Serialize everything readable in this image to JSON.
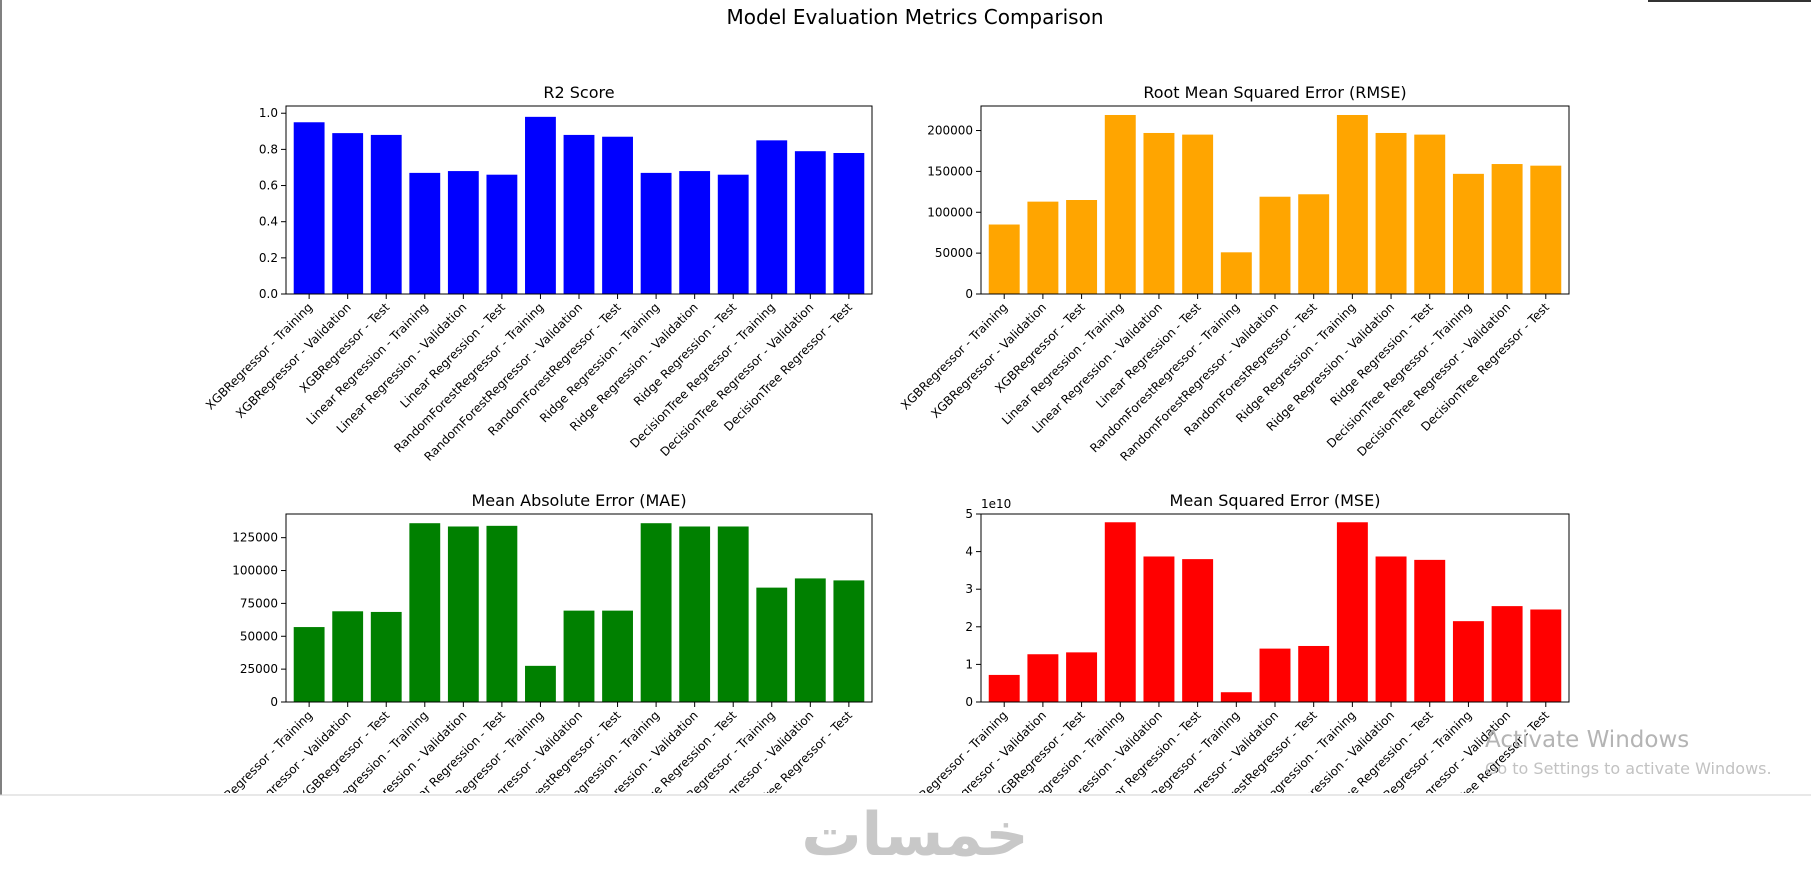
{
  "figure": {
    "title": "Model Evaluation Metrics Comparison"
  },
  "chart_data": [
    {
      "type": "bar",
      "title": "R2 Score",
      "color": "#0000ff",
      "ylim": [
        0,
        1.04
      ],
      "yticks": [
        0,
        0.2,
        0.4,
        0.6,
        0.8,
        1.0
      ],
      "ytick_labels": [
        "0.0",
        "0.2",
        "0.4",
        "0.6",
        "0.8",
        "1.0"
      ],
      "offset_label": "",
      "categories": [
        "XGBRegressor - Training",
        "XGBRegressor - Validation",
        "XGBRegressor - Test",
        "Linear Regression - Training",
        "Linear Regression - Validation",
        "Linear Regression - Test",
        "RandomForestRegressor - Training",
        "RandomForestRegressor - Validation",
        "RandomForestRegressor - Test",
        "Ridge Regression - Training",
        "Ridge Regression - Validation",
        "Ridge Regression - Test",
        "DecisionTree Regressor - Training",
        "DecisionTree Regressor - Validation",
        "DecisionTree Regressor - Test"
      ],
      "values": [
        0.95,
        0.89,
        0.88,
        0.67,
        0.68,
        0.66,
        0.98,
        0.88,
        0.87,
        0.67,
        0.68,
        0.66,
        0.85,
        0.79,
        0.78
      ]
    },
    {
      "type": "bar",
      "title": "Root Mean Squared Error (RMSE)",
      "color": "#ffa500",
      "ylim": [
        0,
        230000
      ],
      "yticks": [
        0,
        50000,
        100000,
        150000,
        200000
      ],
      "ytick_labels": [
        "0",
        "50000",
        "100000",
        "150000",
        "200000"
      ],
      "offset_label": "",
      "categories": [
        "XGBRegressor - Training",
        "XGBRegressor - Validation",
        "XGBRegressor - Test",
        "Linear Regression - Training",
        "Linear Regression - Validation",
        "Linear Regression - Test",
        "RandomForestRegressor - Training",
        "RandomForestRegressor - Validation",
        "RandomForestRegressor - Test",
        "Ridge Regression - Training",
        "Ridge Regression - Validation",
        "Ridge Regression - Test",
        "DecisionTree Regressor - Training",
        "DecisionTree Regressor - Validation",
        "DecisionTree Regressor - Test"
      ],
      "values": [
        85000,
        113000,
        115000,
        219000,
        197000,
        195000,
        51000,
        119000,
        122000,
        219000,
        197000,
        195000,
        147000,
        159000,
        157000
      ]
    },
    {
      "type": "bar",
      "title": "Mean Absolute Error (MAE)",
      "color": "#008000",
      "ylim": [
        0,
        143000
      ],
      "yticks": [
        0,
        25000,
        50000,
        75000,
        100000,
        125000
      ],
      "ytick_labels": [
        "0",
        "25000",
        "50000",
        "75000",
        "100000",
        "125000"
      ],
      "offset_label": "",
      "categories": [
        "XGBRegressor - Training",
        "XGBRegressor - Validation",
        "XGBRegressor - Test",
        "Linear Regression - Training",
        "Linear Regression - Validation",
        "Linear Regression - Test",
        "RandomForestRegressor - Training",
        "RandomForestRegressor - Validation",
        "RandomForestRegressor - Test",
        "Ridge Regression - Training",
        "Ridge Regression - Validation",
        "Ridge Regression - Test",
        "DecisionTree Regressor - Training",
        "DecisionTree Regressor - Validation",
        "DecisionTree Regressor - Test"
      ],
      "values": [
        57000,
        69000,
        68500,
        136000,
        133500,
        134000,
        27500,
        69500,
        69500,
        136000,
        133500,
        133500,
        87000,
        94000,
        92500
      ]
    },
    {
      "type": "bar",
      "title": "Mean Squared Error (MSE)",
      "color": "#ff0000",
      "ylim": [
        0,
        5.0
      ],
      "yticks": [
        0,
        1,
        2,
        3,
        4,
        5
      ],
      "ytick_labels": [
        "0",
        "1",
        "2",
        "3",
        "4",
        "5"
      ],
      "offset_label": "1e10",
      "categories": [
        "XGBRegressor - Training",
        "XGBRegressor - Validation",
        "XGBRegressor - Test",
        "Linear Regression - Training",
        "Linear Regression - Validation",
        "Linear Regression - Test",
        "RandomForestRegressor - Training",
        "RandomForestRegressor - Validation",
        "RandomForestRegressor - Test",
        "Ridge Regression - Training",
        "Ridge Regression - Validation",
        "Ridge Regression - Test",
        "DecisionTree Regressor - Training",
        "DecisionTree Regressor - Validation",
        "DecisionTree Regressor - Test"
      ],
      "values": [
        0.72,
        1.27,
        1.32,
        4.78,
        3.87,
        3.8,
        0.26,
        1.42,
        1.49,
        4.78,
        3.87,
        3.78,
        2.15,
        2.55,
        2.46
      ]
    }
  ],
  "watermark": {
    "line1": "Activate Windows",
    "line2": "Go to Settings to activate Windows."
  },
  "logo_text": "خمسات"
}
